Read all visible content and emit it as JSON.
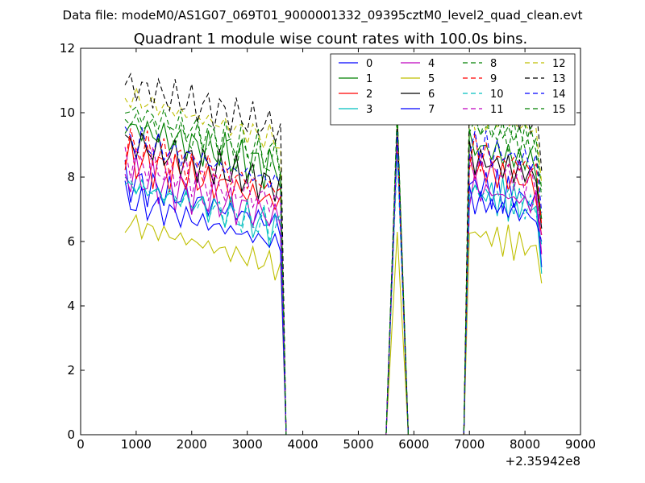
{
  "suptitle": "Data file: modeM0/AS1G07_069T01_9000001332_09395cztM0_level2_quad_clean.evt",
  "chart_data": {
    "type": "line",
    "title": "Quadrant 1 module wise count rates with 100.0s bins.",
    "xlabel": "",
    "ylabel": "",
    "x_offset_label": "+2.35942e8",
    "xlim": [
      0,
      9000
    ],
    "ylim": [
      0,
      12
    ],
    "xticks": [
      "0",
      "1000",
      "2000",
      "3000",
      "4000",
      "5000",
      "6000",
      "7000",
      "8000",
      "9000"
    ],
    "yticks": [
      "0",
      "2",
      "4",
      "6",
      "8",
      "10",
      "12"
    ],
    "legend_position": "top-right",
    "segments": {
      "seg1_start": 800,
      "step": 100,
      "gap_points": [
        [
          3700,
          0
        ],
        [
          3800,
          0
        ],
        [
          5500,
          0
        ]
      ],
      "spike": [
        5700,
        5850
      ],
      "post_spike_points": [
        [
          5900,
          0
        ],
        [
          6900,
          0
        ]
      ],
      "seg3_start": 7000
    },
    "series": [
      {
        "name": "0",
        "color": "#0000ff",
        "dash": "",
        "base1": 6.9,
        "amp": 0.5,
        "spike": 9.6,
        "base3": 7.4,
        "end3": 5.2
      },
      {
        "name": "1",
        "color": "#008000",
        "dash": "",
        "base1": 8.6,
        "amp": 0.5,
        "spike": 9.3,
        "base3": 8.6,
        "end3": 6.7
      },
      {
        "name": "2",
        "color": "#ff0000",
        "dash": "",
        "base1": 7.6,
        "amp": 0.5,
        "spike": 9.4,
        "base3": 7.9,
        "end3": 6.2
      },
      {
        "name": "3",
        "color": "#00bfbf",
        "dash": "",
        "base1": 6.8,
        "amp": 0.5,
        "spike": 9.0,
        "base3": 7.2,
        "end3": 5.0
      },
      {
        "name": "4",
        "color": "#bf00bf",
        "dash": "",
        "base1": 7.1,
        "amp": 0.5,
        "spike": 9.2,
        "base3": 7.3,
        "end3": 5.6
      },
      {
        "name": "5",
        "color": "#bfbf00",
        "dash": "",
        "base1": 5.6,
        "amp": 0.4,
        "spike": 6.3,
        "base3": 5.9,
        "end3": 4.7
      },
      {
        "name": "6",
        "color": "#000000",
        "dash": "",
        "base1": 8.1,
        "amp": 0.4,
        "spike": 9.5,
        "base3": 8.2,
        "end3": 6.4
      },
      {
        "name": "7",
        "color": "#0000ff",
        "dash": "",
        "base1": 6.3,
        "amp": 0.4,
        "spike": 9.4,
        "base3": 6.9,
        "end3": 6.0
      },
      {
        "name": "8",
        "color": "#008000",
        "dash": "6,4",
        "base1": 9.1,
        "amp": 0.4,
        "spike": 9.7,
        "base3": 9.2,
        "end3": 7.6
      },
      {
        "name": "9",
        "color": "#ff0000",
        "dash": "6,4",
        "base1": 8.0,
        "amp": 0.4,
        "spike": 9.2,
        "base3": 8.4,
        "end3": 6.5
      },
      {
        "name": "10",
        "color": "#00bfbf",
        "dash": "6,4",
        "base1": 6.8,
        "amp": 0.4,
        "spike": 8.7,
        "base3": 7.2,
        "end3": 5.9
      },
      {
        "name": "11",
        "color": "#bf00bf",
        "dash": "6,4",
        "base1": 7.6,
        "amp": 0.4,
        "spike": 9.3,
        "base3": 8.0,
        "end3": 6.1
      },
      {
        "name": "12",
        "color": "#bfbf00",
        "dash": "6,4",
        "base1": 9.5,
        "amp": 0.4,
        "spike": 9.8,
        "base3": 9.6,
        "end3": 7.8
      },
      {
        "name": "13",
        "color": "#000000",
        "dash": "6,4",
        "base1": 9.9,
        "amp": 0.4,
        "spike": 9.8,
        "base3": 10.0,
        "end3": 8.2
      },
      {
        "name": "14",
        "color": "#0000ff",
        "dash": "6,4",
        "base1": 8.2,
        "amp": 0.4,
        "spike": 9.4,
        "base3": 8.6,
        "end3": 6.9
      },
      {
        "name": "15",
        "color": "#008000",
        "dash": "6,4",
        "base1": 8.8,
        "amp": 0.4,
        "spike": 10.1,
        "base3": 9.3,
        "end3": 7.4
      }
    ]
  }
}
